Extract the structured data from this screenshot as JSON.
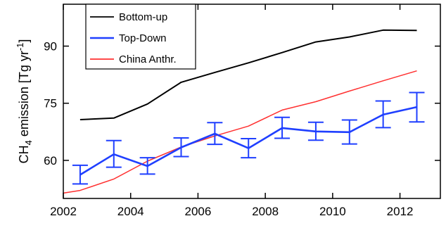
{
  "chart_data": {
    "type": "line",
    "title": "",
    "xlabel": "",
    "ylabel": {
      "prefix": "CH",
      "subscript": "4",
      "middle": " emission [Tg yr",
      "superscript": "-1",
      "suffix": "]"
    },
    "xlim": [
      2002,
      2013.2
    ],
    "ylim": [
      50,
      101
    ],
    "xticks": [
      2002,
      2004,
      2006,
      2008,
      2010,
      2012
    ],
    "yticks": [
      60,
      75,
      90
    ],
    "grid": false,
    "legend_position": "top-left",
    "series": [
      {
        "name": "Bottom-up",
        "color": "#000000",
        "x": [
          2002.5,
          2003.5,
          2004.5,
          2005.5,
          2006.5,
          2007.5,
          2008.5,
          2009.5,
          2010.5,
          2011.5,
          2012.5
        ],
        "y": [
          70.7,
          71.1,
          74.8,
          80.5,
          83.1,
          85.6,
          88.3,
          91.1,
          92.4,
          94.2,
          94.1
        ]
      },
      {
        "name": "Top-Down",
        "color": "#1f3fff",
        "x": [
          2002.5,
          2003.5,
          2004.5,
          2005.5,
          2006.5,
          2007.5,
          2008.5,
          2009.5,
          2010.5,
          2011.5,
          2012.5
        ],
        "y": [
          56.2,
          61.6,
          58.5,
          63.4,
          67.0,
          63.2,
          68.5,
          67.6,
          67.4,
          72.0,
          74.0
        ],
        "err_low": [
          53.8,
          58.2,
          56.4,
          61.0,
          64.2,
          60.7,
          65.8,
          65.3,
          64.3,
          68.6,
          70.1
        ],
        "err_high": [
          58.7,
          65.2,
          60.7,
          65.9,
          69.9,
          65.7,
          71.3,
          70.0,
          70.6,
          75.6,
          77.8
        ]
      },
      {
        "name": "China Anthr.",
        "color": "#ff3030",
        "x": [
          2002,
          2002.5,
          2003.5,
          2004.5,
          2005.5,
          2006.5,
          2007.5,
          2008.5,
          2009.5,
          2010.5,
          2011.5,
          2012.5
        ],
        "y": [
          51.4,
          52.1,
          55.1,
          59.8,
          63.5,
          66.4,
          69.0,
          73.2,
          75.4,
          78.2,
          80.9,
          83.5
        ]
      }
    ]
  }
}
